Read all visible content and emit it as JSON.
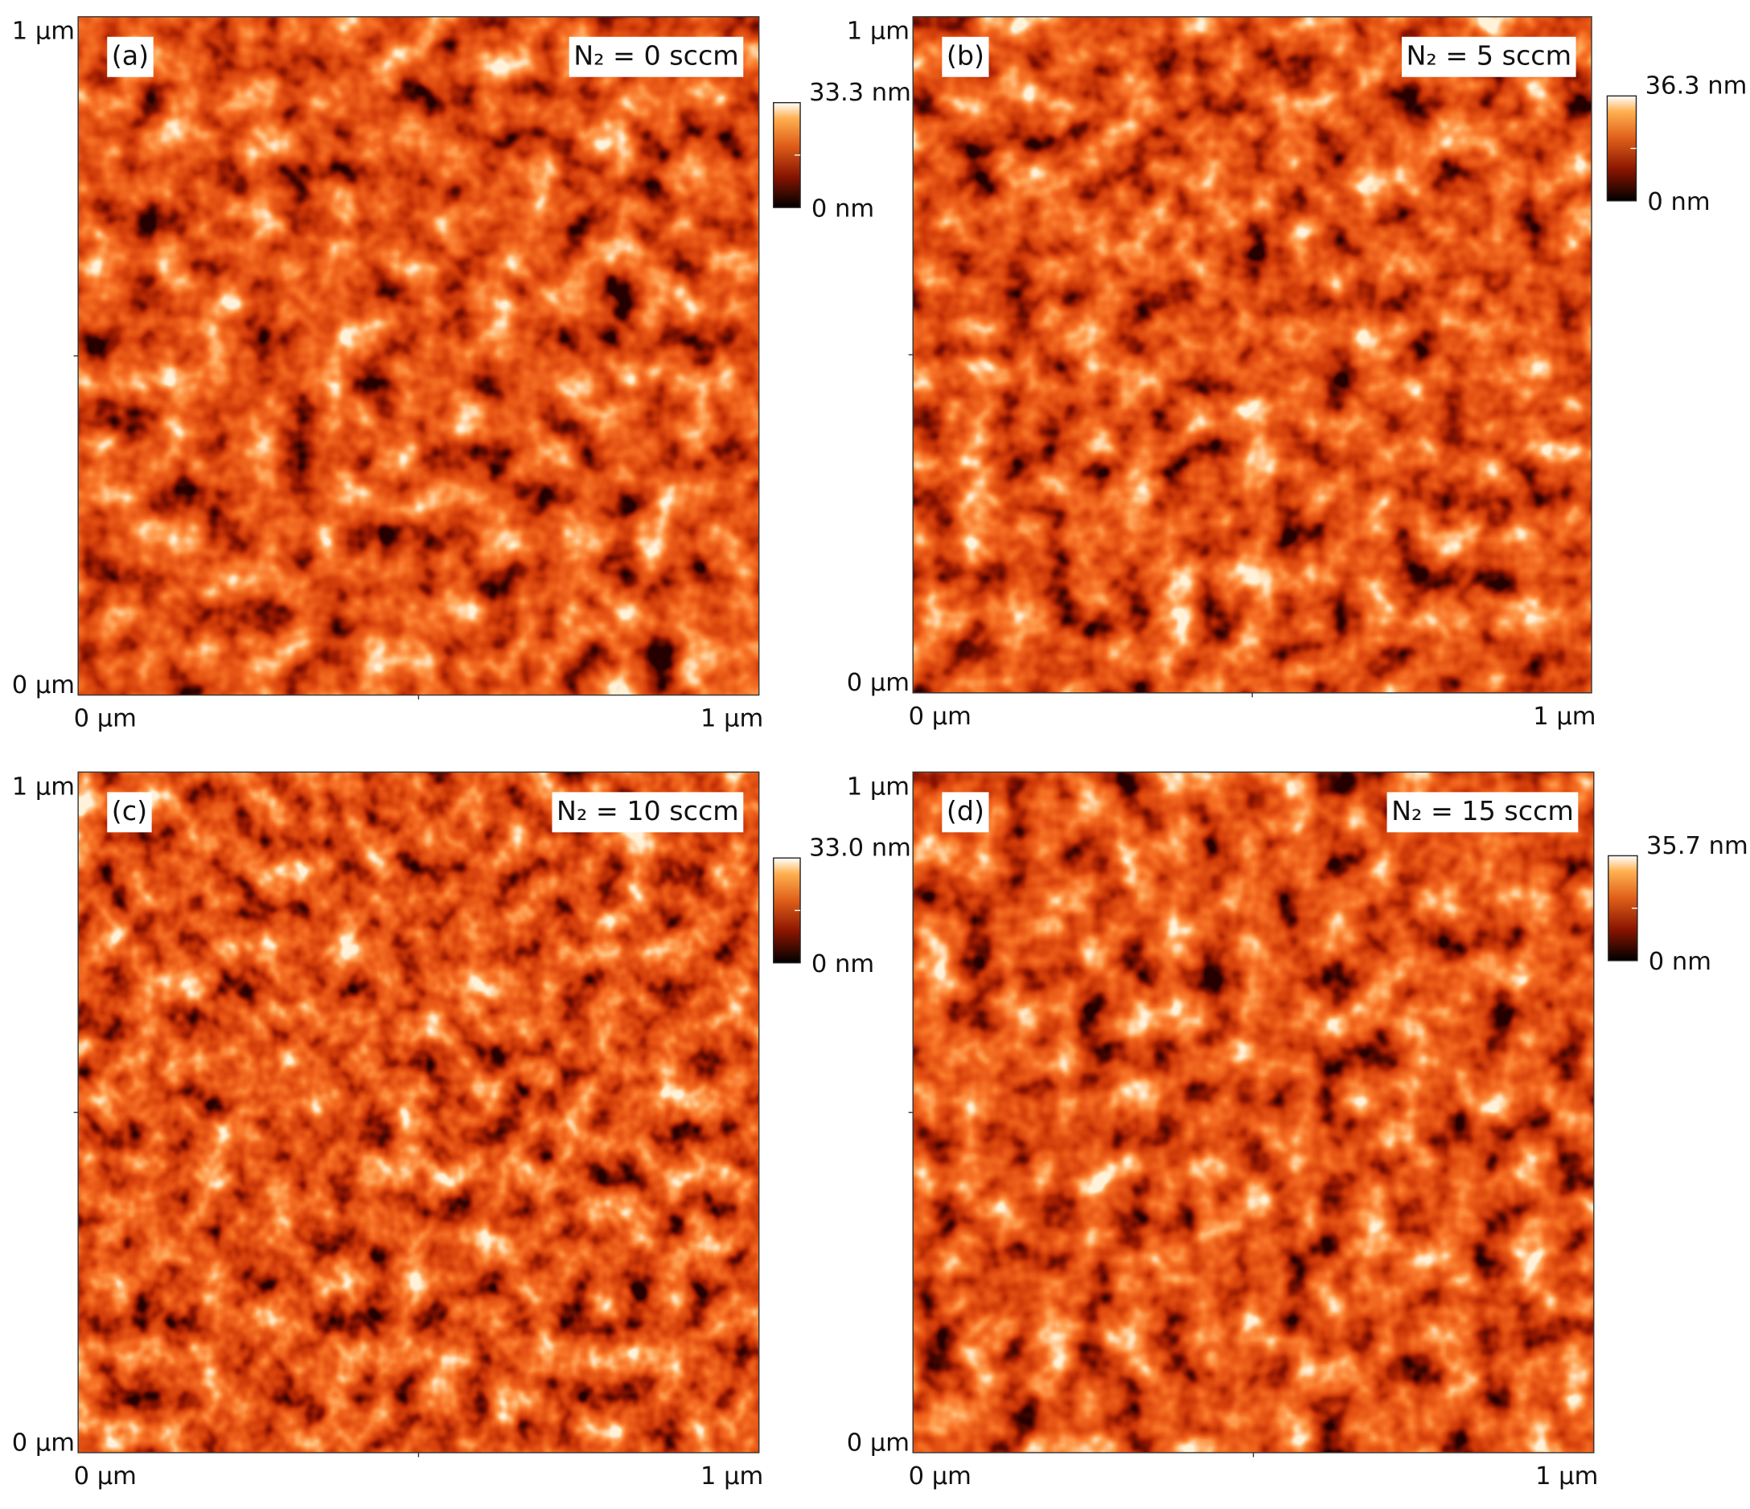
{
  "panels": [
    {
      "label": "(a)",
      "condition": "N₂ = 0 sccm",
      "colorbar": {
        "max": "33.3 nm",
        "min": "0 nm"
      },
      "y_axis": {
        "top": "1 µm",
        "bottom": "0 µm"
      },
      "x_axis": {
        "left": "0 µm",
        "right": "1 µm"
      }
    },
    {
      "label": "(b)",
      "condition": "N₂ = 5 sccm",
      "colorbar": {
        "max": "36.3 nm",
        "min": "0 nm"
      },
      "y_axis": {
        "top": "1 µm",
        "bottom": "0 µm"
      },
      "x_axis": {
        "left": "0 µm",
        "right": "1 µm"
      }
    },
    {
      "label": "(c)",
      "condition": "N₂ = 10 sccm",
      "colorbar": {
        "max": "33.0 nm",
        "min": "0 nm"
      },
      "y_axis": {
        "top": "1 µm",
        "bottom": "0 µm"
      },
      "x_axis": {
        "left": "0 µm",
        "right": "1 µm"
      }
    },
    {
      "label": "(d)",
      "condition": "N₂ = 15 sccm",
      "colorbar": {
        "max": "35.7 nm",
        "min": "0 nm"
      },
      "y_axis": {
        "top": "1 µm",
        "bottom": "0 µm"
      },
      "x_axis": {
        "left": "0 µm",
        "right": "1 µm"
      }
    }
  ]
}
